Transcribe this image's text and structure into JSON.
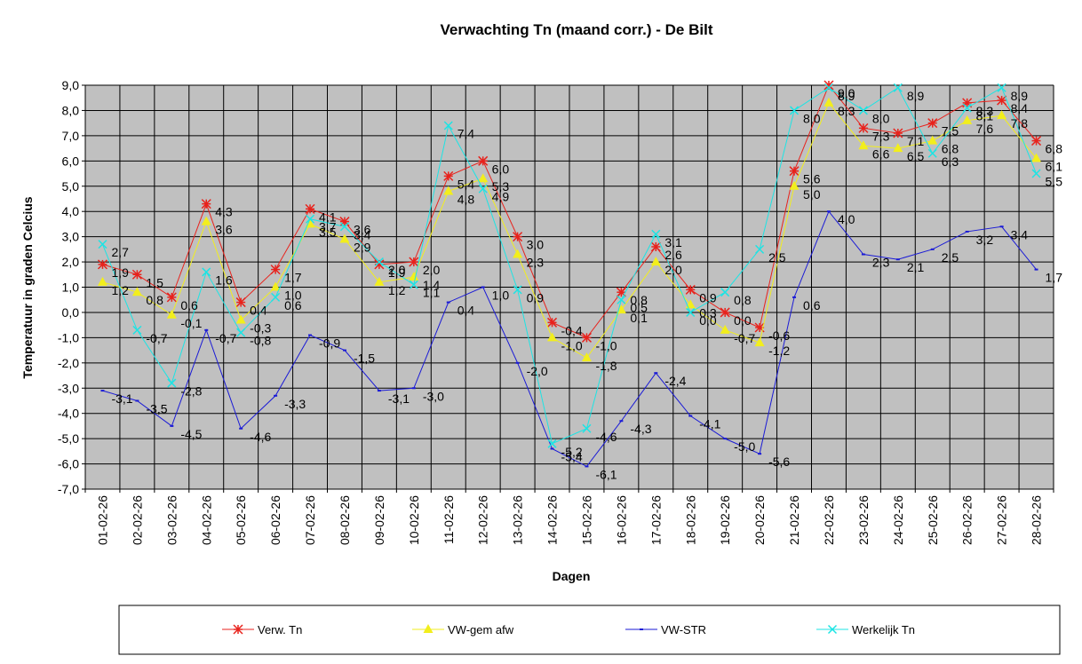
{
  "chart_data": {
    "type": "line",
    "title": "Verwachting Tn (maand corr.) - De Bilt",
    "xlabel": "Dagen",
    "ylabel": "Temperatuur in graden Celcius",
    "ylim": [
      -7,
      9
    ],
    "yticks": [
      "-7,0",
      "-6,0",
      "-5,0",
      "-4,0",
      "-3,0",
      "-2,0",
      "-1,0",
      "0,0",
      "1,0",
      "2,0",
      "3,0",
      "4,0",
      "5,0",
      "6,0",
      "7,0",
      "8,0",
      "9,0"
    ],
    "grid": true,
    "legend_position": "bottom",
    "categories": [
      "01-02-26",
      "02-02-26",
      "03-02-26",
      "04-02-26",
      "05-02-26",
      "06-02-26",
      "07-02-26",
      "08-02-26",
      "09-02-26",
      "10-02-26",
      "11-02-26",
      "12-02-26",
      "13-02-26",
      "14-02-26",
      "15-02-26",
      "16-02-26",
      "17-02-26",
      "18-02-26",
      "19-02-26",
      "20-02-26",
      "21-02-26",
      "22-02-26",
      "23-02-26",
      "24-02-26",
      "25-02-26",
      "26-02-26",
      "27-02-26",
      "28-02-26"
    ],
    "series": [
      {
        "name": "Verw. Tn",
        "color": "#e8221c",
        "marker": "star",
        "values": [
          1.9,
          1.5,
          0.6,
          4.3,
          0.4,
          1.7,
          4.1,
          3.6,
          1.9,
          2.0,
          5.4,
          6.0,
          3.0,
          -0.4,
          -1.0,
          0.8,
          2.6,
          0.9,
          0.0,
          -0.6,
          5.6,
          9.0,
          7.3,
          7.1,
          7.5,
          8.3,
          8.4,
          6.8
        ],
        "labels": [
          "1,9",
          "1,5",
          "0,6",
          "4,3",
          "0,4",
          "1,7",
          "4,1",
          "3,6",
          "1,9",
          "2,0",
          "5,4",
          "6,0",
          "3,0",
          "-0,4",
          "-1,0",
          "0,8",
          "2,6",
          "0,9",
          "0,0",
          "-0,6",
          "5,6",
          "9,0",
          "7,3",
          "7,1",
          "7,5",
          "8,3",
          "8,4",
          "6,8"
        ]
      },
      {
        "name": "VW-gem afw",
        "color": "#f2ee1c",
        "marker": "triangle",
        "values": [
          1.2,
          0.8,
          -0.1,
          3.6,
          -0.3,
          1.0,
          3.5,
          2.9,
          1.2,
          1.4,
          4.8,
          5.3,
          2.3,
          -1.0,
          -1.8,
          0.1,
          2.0,
          0.3,
          -0.7,
          -1.2,
          5.0,
          8.3,
          6.6,
          6.5,
          6.8,
          7.6,
          7.8,
          6.1
        ],
        "labels": [
          "1,2",
          "0,8",
          "-0,1",
          "3,6",
          "-0,3",
          "1,0",
          "3,5",
          "2,9",
          "1,2",
          "1,4",
          "4,8",
          "5,3",
          "2,3",
          "-1,0",
          "-1,8",
          "0,1",
          "2,0",
          "0,3",
          "-0,7",
          "-1,2",
          "5,0",
          "8,3",
          "6,6",
          "6,5",
          "6,8",
          "7,6",
          "7,8",
          "6,1"
        ]
      },
      {
        "name": "VW-STR",
        "color": "#1a1ad6",
        "marker": "dash",
        "values": [
          -3.1,
          -3.5,
          -4.5,
          -0.7,
          -4.6,
          -3.3,
          -0.9,
          -1.5,
          -3.1,
          -3.0,
          0.4,
          1.0,
          -2.0,
          -5.4,
          -6.1,
          -4.3,
          -2.4,
          -4.1,
          -5.0,
          -5.6,
          0.6,
          4.0,
          2.3,
          2.1,
          2.5,
          3.2,
          3.4,
          1.7
        ],
        "labels": [
          "-3,1",
          "-3,5",
          "-4,5",
          "-0,7",
          "-4,6",
          "-3,3",
          "-0,9",
          "-1,5",
          "-3,1",
          "-3,0",
          "0,4",
          "1,0",
          "-2,0",
          "-5,4",
          "-6,1",
          "-4,3",
          "-2,4",
          "-4,1",
          "-5,0",
          "-5,6",
          "0,6",
          "4,0",
          "2,3",
          "2,1",
          "2,5",
          "3,2",
          "3,4",
          "1,7"
        ]
      },
      {
        "name": "Werkelijk Tn",
        "color": "#1ce4e4",
        "marker": "x",
        "values": [
          2.7,
          -0.7,
          -2.8,
          1.6,
          -0.8,
          0.6,
          3.7,
          3.4,
          2.0,
          1.1,
          7.4,
          4.9,
          0.9,
          -5.2,
          -4.6,
          0.5,
          3.1,
          0.0,
          0.8,
          2.5,
          8.0,
          8.9,
          8.0,
          8.9,
          6.3,
          8.1,
          8.9,
          5.5
        ],
        "labels": [
          "2,7",
          "-0,7",
          "-2,8",
          "1,6",
          "-0,8",
          "0,6",
          "3,7",
          "3,4",
          "2,0",
          "1,1",
          "7,4",
          "4,9",
          "0,9",
          "-5,2",
          "-4,6",
          "0,5",
          "3,1",
          "0,0",
          "0,8",
          "2,5",
          "8,0",
          "8,9",
          "8,0",
          "8,9",
          "6,3",
          "8,1",
          "8,9",
          "5,5"
        ]
      }
    ]
  }
}
